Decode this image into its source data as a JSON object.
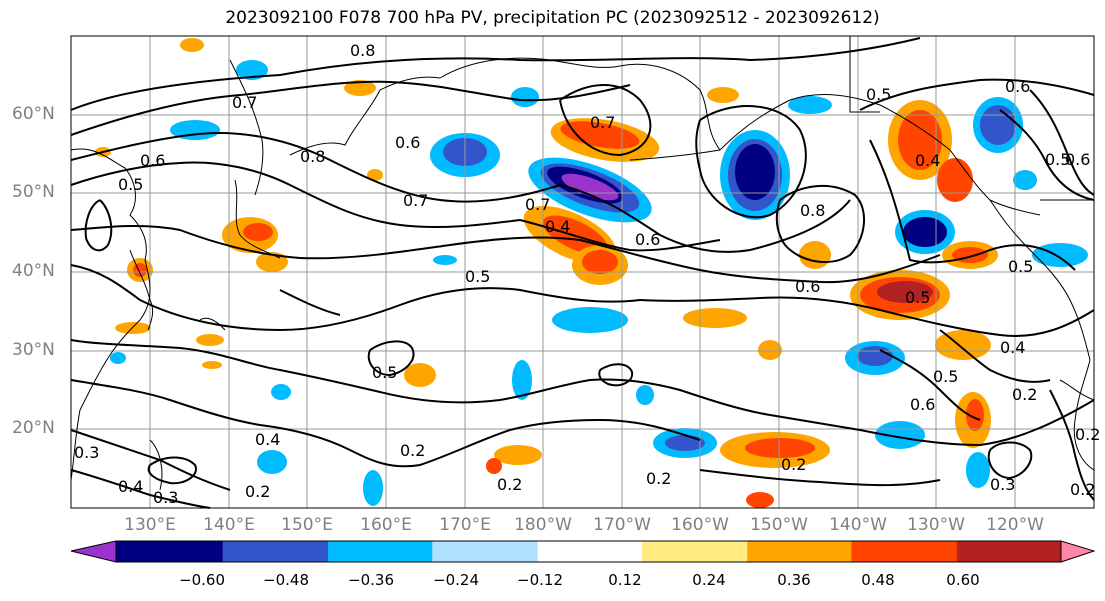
{
  "title": "2023092100 F078 700 hPa PV, precipitation PC (2023092512 - 2023092612)",
  "lat_labels": [
    "60°N",
    "50°N",
    "40°N",
    "30°N",
    "20°N"
  ],
  "lon_labels": [
    "130°E",
    "140°E",
    "150°E",
    "160°E",
    "170°E",
    "180°W",
    "170°W",
    "160°W",
    "150°W",
    "140°W",
    "130°W",
    "120°W"
  ],
  "colorbar": {
    "colors": [
      "#9933cc",
      "#000080",
      "#3355cc",
      "#00bbff",
      "#b0e0ff",
      "#ffffff",
      "#ffeb80",
      "#ffa500",
      "#ff4500",
      "#b22222",
      "#ff88aa"
    ],
    "ticks": [
      "−0.60",
      "−0.48",
      "−0.36",
      "−0.24",
      "−0.12",
      "0.12",
      "0.24",
      "0.36",
      "0.48",
      "0.60"
    ]
  },
  "contour_labels": [
    "0.8",
    "0.7",
    "0.8",
    "0.6",
    "0.7",
    "0.5",
    "0.6",
    "0.7",
    "0.8",
    "0.6",
    "0.5",
    "0.6",
    "0.7",
    "0.4",
    "0.6",
    "0.5",
    "0.5",
    "0.6",
    "0.5",
    "0.4",
    "0.2",
    "0.2",
    "0.2",
    "0.3",
    "0.4",
    "0.3",
    "0.2",
    "0.2",
    "0.4",
    "0.2",
    "0.3",
    "0.2",
    "0.2",
    "0.5",
    "0.5",
    "0.6",
    "0.5",
    "0.4"
  ]
}
